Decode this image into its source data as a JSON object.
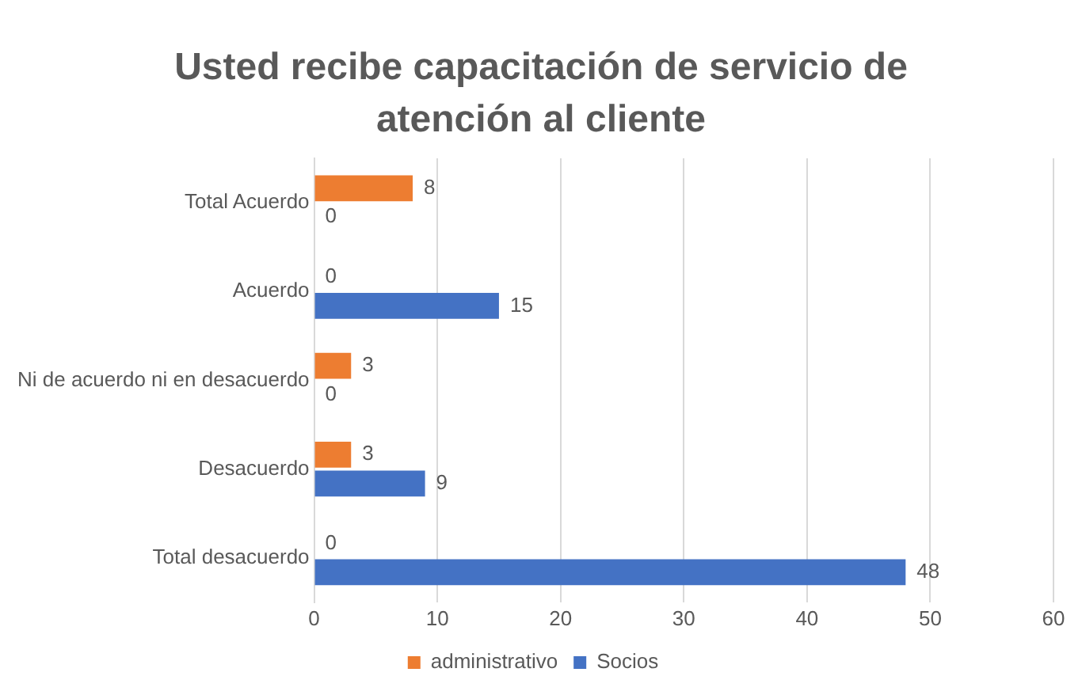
{
  "chart_data": {
    "type": "bar",
    "orientation": "horizontal",
    "title": "Usted recibe capacitación de servicio de atención al cliente",
    "categories": [
      "Total Acuerdo",
      "Acuerdo",
      "Ni de acuerdo ni en desacuerdo",
      "Desacuerdo",
      "Total desacuerdo"
    ],
    "series": [
      {
        "name": "administrativo",
        "color": "#ed7d31",
        "values": [
          8,
          0,
          3,
          3,
          0
        ]
      },
      {
        "name": "Socios",
        "color": "#4472c4",
        "values": [
          0,
          15,
          0,
          9,
          48
        ]
      }
    ],
    "xlim": [
      0,
      60
    ],
    "xticks": [
      0,
      10,
      20,
      30,
      40,
      50,
      60
    ],
    "grid": "x",
    "legend": "bottom",
    "data_labels": true
  }
}
